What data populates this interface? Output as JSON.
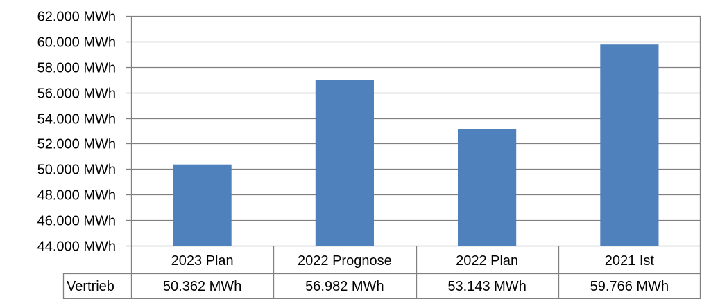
{
  "chart_data": {
    "type": "bar",
    "categories": [
      "2023 Plan",
      "2022 Prognose",
      "2022 Plan",
      "2021 Ist"
    ],
    "series": [
      {
        "name": "Vertrieb",
        "values": [
          50362,
          56982,
          53143,
          59766
        ],
        "value_labels": [
          "50.362 MWh",
          "56.982 MWh",
          "53.143 MWh",
          "59.766 MWh"
        ],
        "color": "#4F81BD"
      }
    ],
    "ylim": [
      44000,
      62000
    ],
    "yticks": [
      44000,
      46000,
      48000,
      50000,
      52000,
      54000,
      56000,
      58000,
      60000,
      62000
    ],
    "ytick_labels": [
      "44.000 MWh",
      "46.000 MWh",
      "48.000 MWh",
      "50.000 MWh",
      "52.000 MWh",
      "54.000 MWh",
      "56.000 MWh",
      "58.000 MWh",
      "60.000 MWh",
      "62.000 MWh"
    ],
    "grid": true,
    "data_table": true,
    "gridline_color": "#808080"
  }
}
